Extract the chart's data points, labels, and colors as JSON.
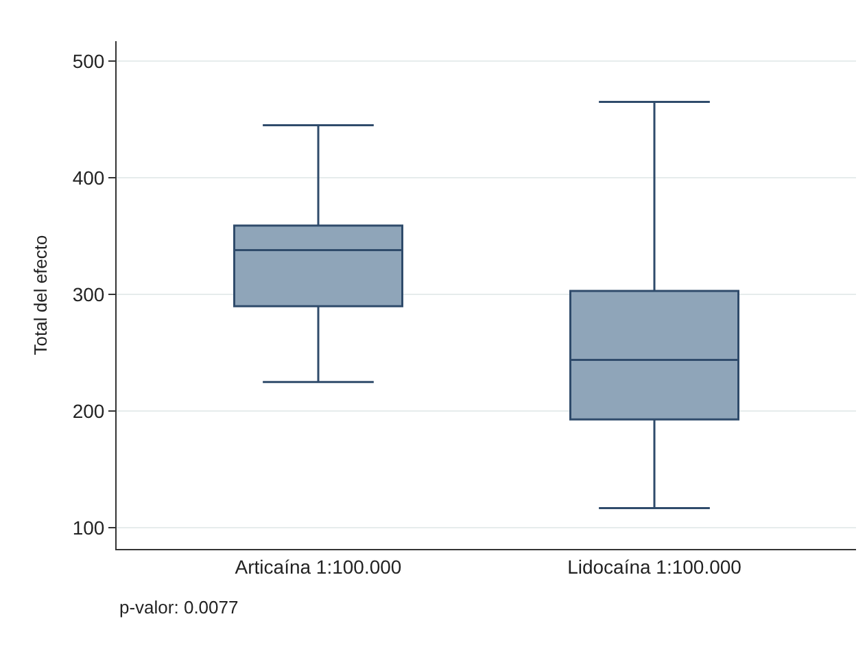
{
  "chart_data": {
    "type": "box",
    "ylabel": "Total del efecto",
    "categories": [
      "Articaína 1:100.000",
      "Lidocaína 1:100.000"
    ],
    "boxes": [
      {
        "low": 225,
        "q1": 290,
        "median": 338,
        "q3": 359,
        "high": 445
      },
      {
        "low": 117,
        "q1": 193,
        "median": 244,
        "q3": 303,
        "high": 465
      }
    ],
    "color": "#8fa5b9",
    "ylim": [
      82,
      517
    ],
    "yticks": [
      100,
      200,
      300,
      400,
      500
    ],
    "grid": "y",
    "annotations": [
      "p-valor: 0.0077"
    ]
  }
}
